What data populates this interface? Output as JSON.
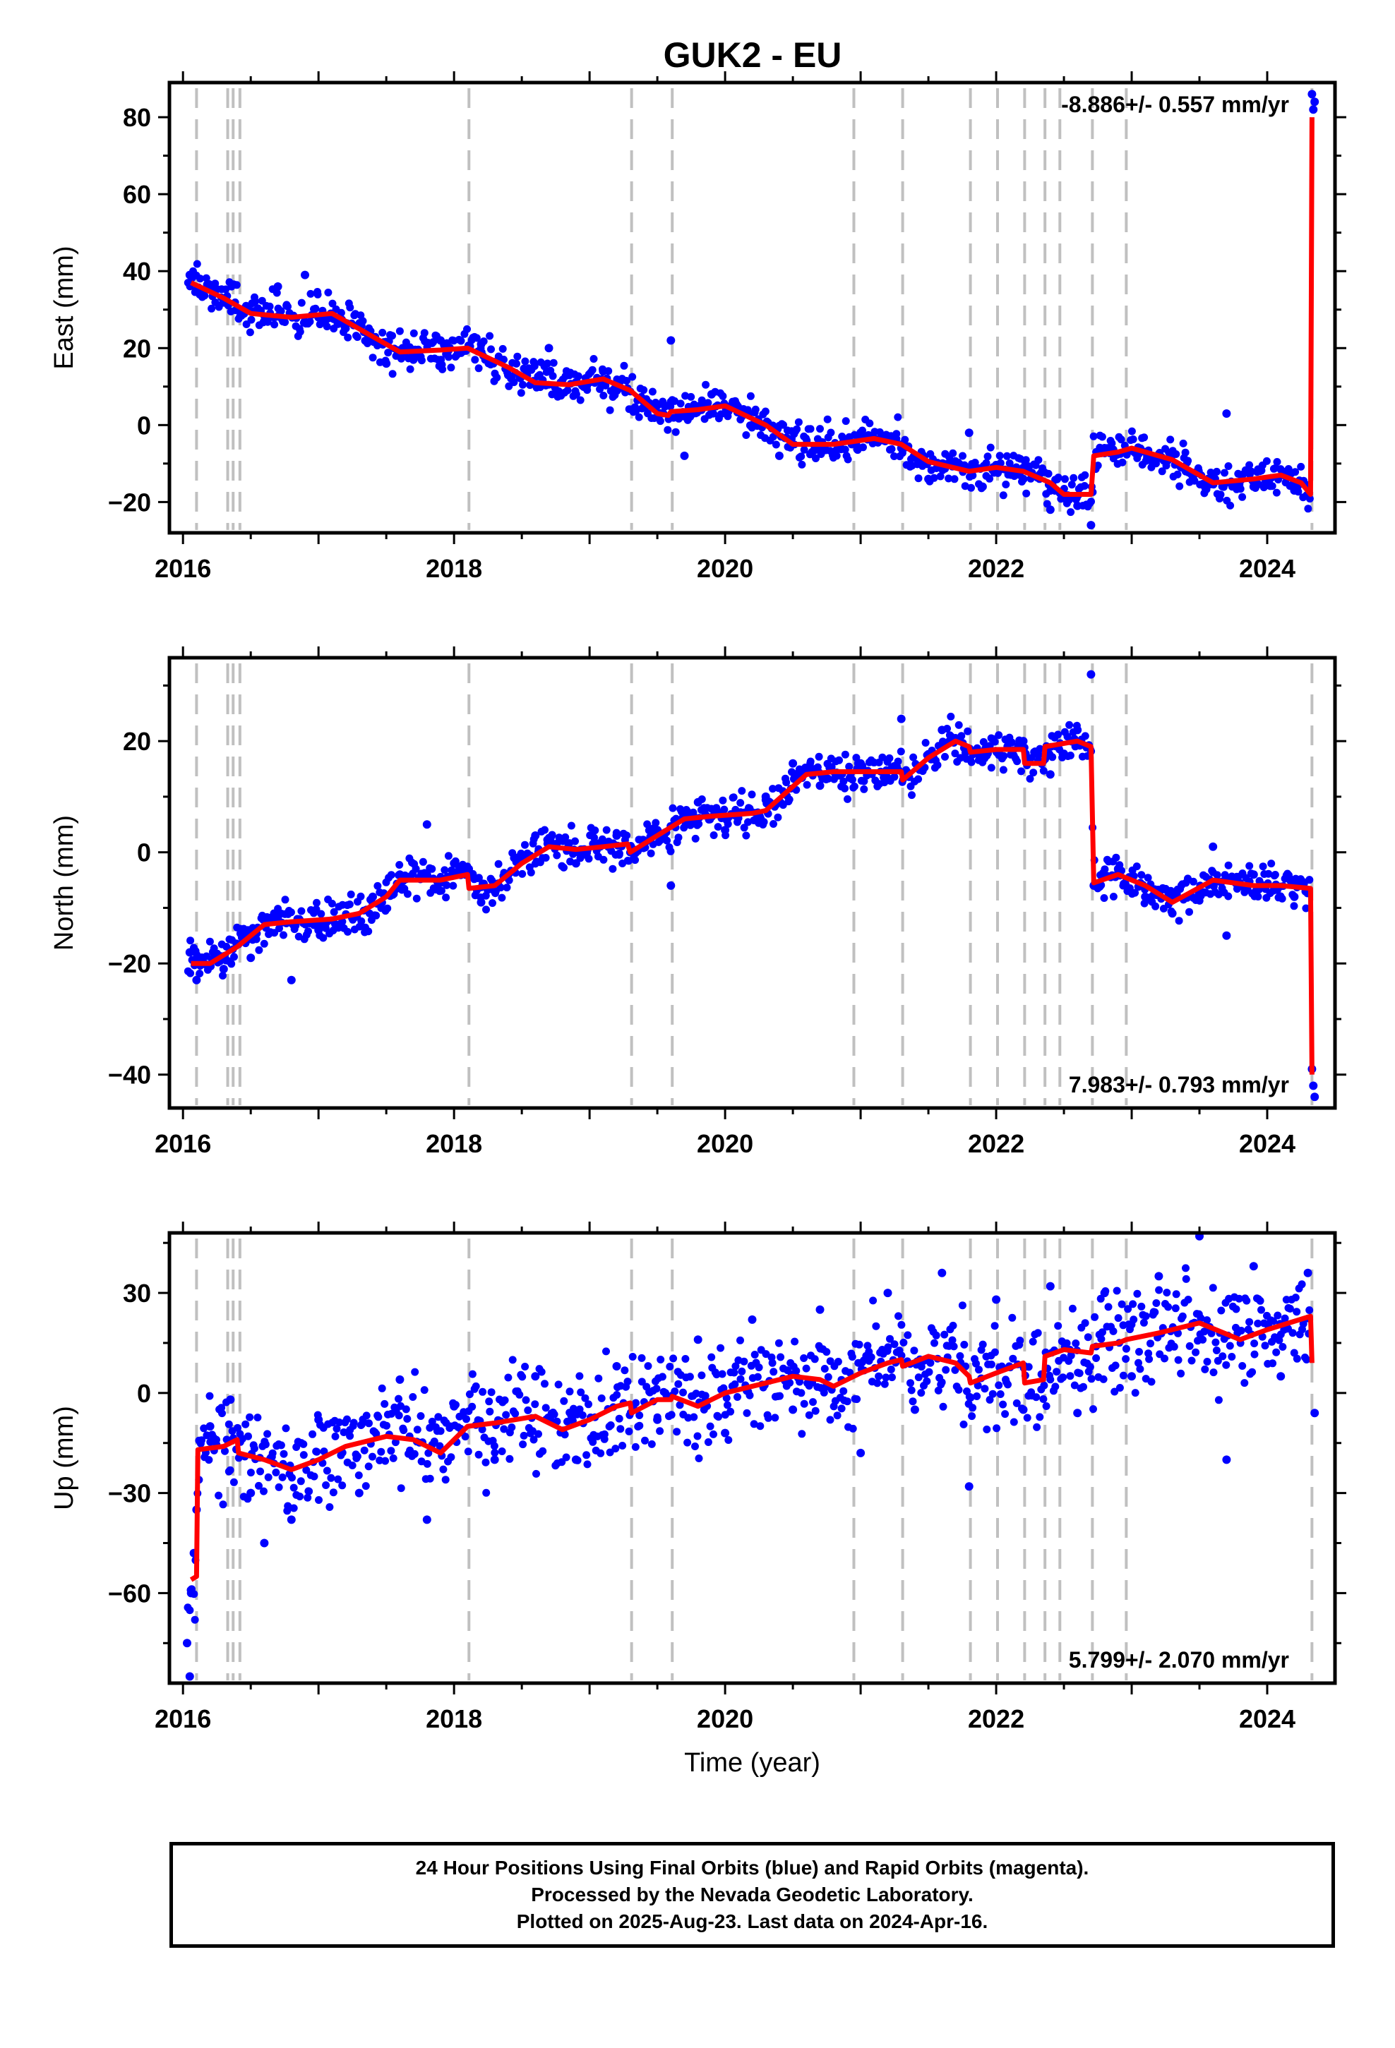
{
  "title": "GUK2 - EU",
  "colors": {
    "points": "#0000ff",
    "model": "#ff0000",
    "breaks": "#c0c0c0",
    "axes": "#000000"
  },
  "chart_data": [
    {
      "type": "scatter",
      "component": "East",
      "ylabel": "East (mm)",
      "xlabel": "",
      "rate_label": "-8.886+/- 0.557 mm/yr",
      "rate_position": "top-right",
      "xlim": [
        2015.9,
        2024.5
      ],
      "ylim": [
        -28,
        89
      ],
      "xticks": [
        2016,
        2018,
        2020,
        2022,
        2024
      ],
      "yticks": [
        -20,
        0,
        20,
        40,
        60,
        80
      ],
      "model": [
        [
          2016.06,
          37
        ],
        [
          2016.3,
          33
        ],
        [
          2016.5,
          29
        ],
        [
          2016.8,
          28
        ],
        [
          2017.1,
          29
        ],
        [
          2017.3,
          25
        ],
        [
          2017.6,
          19
        ],
        [
          2017.9,
          19.5
        ],
        [
          2018.1,
          20
        ],
        [
          2018.4,
          15
        ],
        [
          2018.6,
          11
        ],
        [
          2018.85,
          10.5
        ],
        [
          2019.1,
          12
        ],
        [
          2019.3,
          9
        ],
        [
          2019.5,
          3
        ],
        [
          2019.58,
          2.5
        ],
        [
          2019.6,
          3.5
        ],
        [
          2019.8,
          4
        ],
        [
          2020.0,
          5
        ],
        [
          2020.3,
          0
        ],
        [
          2020.5,
          -5
        ],
        [
          2020.8,
          -5
        ],
        [
          2021.1,
          -3.5
        ],
        [
          2021.3,
          -5
        ],
        [
          2021.5,
          -9.5
        ],
        [
          2021.8,
          -12
        ],
        [
          2022.0,
          -11
        ],
        [
          2022.2,
          -12
        ],
        [
          2022.4,
          -15
        ],
        [
          2022.5,
          -18
        ],
        [
          2022.7,
          -18
        ],
        [
          2022.72,
          -8
        ],
        [
          2022.9,
          -7
        ],
        [
          2023.0,
          -6
        ],
        [
          2023.3,
          -9
        ],
        [
          2023.6,
          -15
        ],
        [
          2023.9,
          -14
        ],
        [
          2024.1,
          -13
        ],
        [
          2024.25,
          -15
        ],
        [
          2024.32,
          -18
        ],
        [
          2024.33,
          80
        ]
      ],
      "points": [
        [
          2016.05,
          39
        ],
        [
          2016.1,
          35
        ],
        [
          2016.2,
          36
        ],
        [
          2016.3,
          32
        ],
        [
          2016.45,
          29
        ],
        [
          2016.6,
          27
        ],
        [
          2016.7,
          36
        ],
        [
          2016.9,
          39
        ],
        [
          2017.0,
          28
        ],
        [
          2017.2,
          26
        ],
        [
          2017.5,
          16
        ],
        [
          2017.7,
          17
        ],
        [
          2017.9,
          22
        ],
        [
          2018.2,
          21
        ],
        [
          2018.4,
          13
        ],
        [
          2018.7,
          20
        ],
        [
          2018.9,
          8
        ],
        [
          2019.1,
          14
        ],
        [
          2019.4,
          6
        ],
        [
          2019.6,
          22
        ],
        [
          2019.7,
          -8
        ],
        [
          2019.9,
          8
        ],
        [
          2020.2,
          0
        ],
        [
          2020.4,
          -8
        ],
        [
          2020.7,
          -6
        ],
        [
          2021.0,
          -2
        ],
        [
          2021.3,
          -6
        ],
        [
          2021.5,
          -14
        ],
        [
          2021.8,
          -2
        ],
        [
          2021.9,
          -16
        ],
        [
          2022.2,
          -14
        ],
        [
          2022.4,
          -22
        ],
        [
          2022.6,
          -21
        ],
        [
          2022.7,
          -26
        ],
        [
          2022.8,
          -6
        ],
        [
          2023.1,
          -7
        ],
        [
          2023.4,
          -12
        ],
        [
          2023.7,
          3
        ],
        [
          2023.9,
          -16
        ],
        [
          2024.2,
          -17
        ],
        [
          2024.33,
          86
        ],
        [
          2024.34,
          82
        ],
        [
          2024.35,
          84
        ]
      ]
    },
    {
      "type": "scatter",
      "component": "North",
      "ylabel": "North (mm)",
      "xlabel": "",
      "rate_label": "7.983+/- 0.793 mm/yr",
      "rate_position": "bottom-right",
      "xlim": [
        2015.9,
        2024.5
      ],
      "ylim": [
        -46,
        35
      ],
      "xticks": [
        2016,
        2018,
        2020,
        2022,
        2024
      ],
      "yticks": [
        -40,
        -20,
        0,
        20
      ],
      "model": [
        [
          2016.06,
          -20
        ],
        [
          2016.2,
          -20
        ],
        [
          2016.4,
          -17
        ],
        [
          2016.6,
          -13
        ],
        [
          2016.8,
          -12.5
        ],
        [
          2017.1,
          -12
        ],
        [
          2017.3,
          -11
        ],
        [
          2017.5,
          -8
        ],
        [
          2017.6,
          -5
        ],
        [
          2017.9,
          -5
        ],
        [
          2018.1,
          -4
        ],
        [
          2018.11,
          -6.5
        ],
        [
          2018.3,
          -6
        ],
        [
          2018.5,
          -2
        ],
        [
          2018.7,
          1
        ],
        [
          2018.9,
          0.5
        ],
        [
          2019.1,
          1
        ],
        [
          2019.28,
          1.5
        ],
        [
          2019.3,
          0
        ],
        [
          2019.5,
          3
        ],
        [
          2019.7,
          6
        ],
        [
          2019.9,
          6.5
        ],
        [
          2020.2,
          7
        ],
        [
          2020.3,
          7.5
        ],
        [
          2020.6,
          14
        ],
        [
          2020.8,
          14.5
        ],
        [
          2021.1,
          14.5
        ],
        [
          2021.3,
          14.5
        ],
        [
          2021.31,
          13
        ],
        [
          2021.5,
          17
        ],
        [
          2021.7,
          20
        ],
        [
          2021.8,
          19
        ],
        [
          2021.81,
          18
        ],
        [
          2022.0,
          18.5
        ],
        [
          2022.2,
          18.5
        ],
        [
          2022.21,
          16
        ],
        [
          2022.35,
          16
        ],
        [
          2022.36,
          19
        ],
        [
          2022.6,
          20
        ],
        [
          2022.7,
          19
        ],
        [
          2022.72,
          -5.5
        ],
        [
          2022.9,
          -4
        ],
        [
          2023.1,
          -6
        ],
        [
          2023.3,
          -9
        ],
        [
          2023.6,
          -5
        ],
        [
          2023.9,
          -6
        ],
        [
          2024.1,
          -6
        ],
        [
          2024.32,
          -6.5
        ],
        [
          2024.33,
          -40
        ]
      ],
      "points": [
        [
          2016.05,
          -18
        ],
        [
          2016.1,
          -23
        ],
        [
          2016.3,
          -21
        ],
        [
          2016.5,
          -19
        ],
        [
          2016.8,
          -23
        ],
        [
          2016.7,
          -12
        ],
        [
          2017.0,
          -14
        ],
        [
          2017.4,
          -8
        ],
        [
          2017.6,
          -4
        ],
        [
          2017.8,
          5
        ],
        [
          2018.0,
          -2
        ],
        [
          2018.2,
          -9
        ],
        [
          2018.4,
          -4
        ],
        [
          2018.6,
          3
        ],
        [
          2018.9,
          -2
        ],
        [
          2019.2,
          3
        ],
        [
          2019.5,
          4
        ],
        [
          2019.6,
          -6
        ],
        [
          2019.8,
          9
        ],
        [
          2020.0,
          4
        ],
        [
          2020.3,
          10
        ],
        [
          2020.5,
          16
        ],
        [
          2020.7,
          12
        ],
        [
          2021.0,
          16
        ],
        [
          2021.3,
          24
        ],
        [
          2021.6,
          22
        ],
        [
          2021.9,
          18
        ],
        [
          2022.2,
          20
        ],
        [
          2022.4,
          14
        ],
        [
          2022.6,
          22
        ],
        [
          2022.7,
          32
        ],
        [
          2022.72,
          -6
        ],
        [
          2022.9,
          -3
        ],
        [
          2023.1,
          -8
        ],
        [
          2023.3,
          -11
        ],
        [
          2023.6,
          1
        ],
        [
          2023.7,
          -15
        ],
        [
          2023.9,
          -4
        ],
        [
          2024.2,
          -8
        ],
        [
          2024.33,
          -39
        ],
        [
          2024.34,
          -42
        ],
        [
          2024.35,
          -44
        ]
      ]
    },
    {
      "type": "scatter",
      "component": "Up",
      "ylabel": "Up (mm)",
      "xlabel": "Time (year)",
      "rate_label": "5.799+/- 2.070 mm/yr",
      "rate_position": "bottom-right",
      "xlim": [
        2015.9,
        2024.5
      ],
      "ylim": [
        -87,
        48
      ],
      "xticks": [
        2016,
        2018,
        2020,
        2022,
        2024
      ],
      "yticks": [
        -60,
        -30,
        0,
        30
      ],
      "model": [
        [
          2016.06,
          -56
        ],
        [
          2016.1,
          -55
        ],
        [
          2016.11,
          -17
        ],
        [
          2016.3,
          -16
        ],
        [
          2016.4,
          -14
        ],
        [
          2016.41,
          -18
        ],
        [
          2016.6,
          -20
        ],
        [
          2016.8,
          -23
        ],
        [
          2017.0,
          -20
        ],
        [
          2017.2,
          -16
        ],
        [
          2017.5,
          -13
        ],
        [
          2017.7,
          -14
        ],
        [
          2017.9,
          -18
        ],
        [
          2018.1,
          -10
        ],
        [
          2018.3,
          -9
        ],
        [
          2018.6,
          -7
        ],
        [
          2018.8,
          -11
        ],
        [
          2019.0,
          -8
        ],
        [
          2019.2,
          -4
        ],
        [
          2019.3,
          -3
        ],
        [
          2019.31,
          -6
        ],
        [
          2019.5,
          -2
        ],
        [
          2019.6,
          -2
        ],
        [
          2019.61,
          -1
        ],
        [
          2019.8,
          -4
        ],
        [
          2020.0,
          0
        ],
        [
          2020.3,
          3
        ],
        [
          2020.5,
          5
        ],
        [
          2020.7,
          4
        ],
        [
          2020.8,
          2
        ],
        [
          2021.0,
          6
        ],
        [
          2021.2,
          9
        ],
        [
          2021.3,
          10
        ],
        [
          2021.31,
          8
        ],
        [
          2021.5,
          11
        ],
        [
          2021.7,
          9
        ],
        [
          2021.8,
          5
        ],
        [
          2021.81,
          3
        ],
        [
          2022.0,
          6
        ],
        [
          2022.2,
          9
        ],
        [
          2022.21,
          3
        ],
        [
          2022.35,
          4
        ],
        [
          2022.36,
          11
        ],
        [
          2022.5,
          13
        ],
        [
          2022.7,
          12
        ],
        [
          2022.71,
          14
        ],
        [
          2022.9,
          15
        ],
        [
          2022.96,
          16
        ],
        [
          2023.2,
          18
        ],
        [
          2023.5,
          21
        ],
        [
          2023.8,
          16
        ],
        [
          2024.0,
          19
        ],
        [
          2024.32,
          23
        ],
        [
          2024.33,
          9
        ]
      ],
      "points": [
        [
          2016.03,
          -75
        ],
        [
          2016.05,
          -85
        ],
        [
          2016.06,
          -60
        ],
        [
          2016.08,
          -48
        ],
        [
          2016.1,
          -35
        ],
        [
          2016.2,
          -10
        ],
        [
          2016.35,
          -2
        ],
        [
          2016.5,
          -30
        ],
        [
          2016.6,
          -45
        ],
        [
          2016.8,
          -38
        ],
        [
          2017.0,
          -8
        ],
        [
          2017.3,
          -30
        ],
        [
          2017.6,
          4
        ],
        [
          2017.8,
          -38
        ],
        [
          2018.0,
          -4
        ],
        [
          2018.3,
          -20
        ],
        [
          2018.6,
          5
        ],
        [
          2018.9,
          -20
        ],
        [
          2019.2,
          8
        ],
        [
          2019.5,
          -8
        ],
        [
          2019.8,
          16
        ],
        [
          2020.0,
          -12
        ],
        [
          2020.2,
          22
        ],
        [
          2020.5,
          -5
        ],
        [
          2020.7,
          25
        ],
        [
          2021.0,
          -18
        ],
        [
          2021.2,
          30
        ],
        [
          2021.4,
          -5
        ],
        [
          2021.6,
          36
        ],
        [
          2021.8,
          -28
        ],
        [
          2022.0,
          28
        ],
        [
          2022.2,
          -5
        ],
        [
          2022.4,
          32
        ],
        [
          2022.6,
          -6
        ],
        [
          2022.8,
          30
        ],
        [
          2023.0,
          5
        ],
        [
          2023.2,
          35
        ],
        [
          2023.5,
          47
        ],
        [
          2023.7,
          -20
        ],
        [
          2023.9,
          38
        ],
        [
          2024.1,
          5
        ],
        [
          2024.3,
          36
        ],
        [
          2024.35,
          -6
        ]
      ]
    }
  ],
  "break_years": [
    2016.1,
    2016.33,
    2016.37,
    2016.42,
    2018.11,
    2019.31,
    2019.61,
    2020.95,
    2021.31,
    2021.81,
    2022.01,
    2022.21,
    2022.36,
    2022.47,
    2022.71,
    2022.96,
    2024.33
  ],
  "footer": {
    "line1": "24 Hour Positions Using Final Orbits (blue) and Rapid Orbits (magenta).",
    "line2": "Processed by the Nevada Geodetic Laboratory.",
    "line3": "Plotted on 2025-Aug-23. Last data on 2024-Apr-16."
  }
}
